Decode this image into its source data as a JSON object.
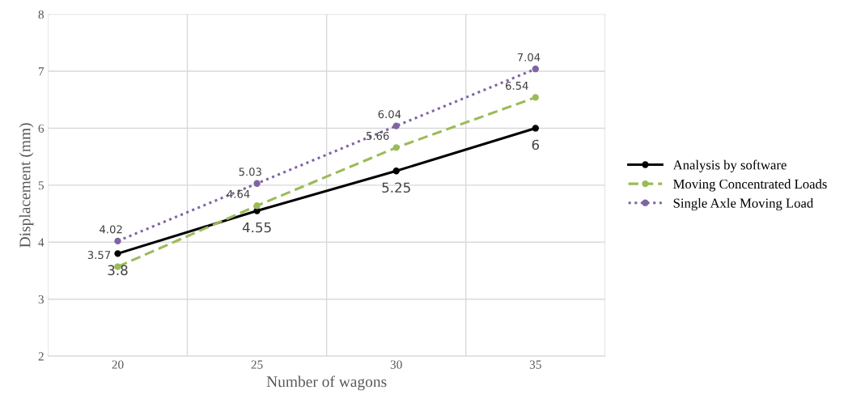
{
  "chart_data": {
    "type": "line",
    "xlabel": "Number of wagons",
    "ylabel": "Displacement (mm)",
    "categories": [
      "20",
      "25",
      "30",
      "35"
    ],
    "series": [
      {
        "name": "Analysis by software",
        "color": "#000000",
        "values": [
          3.8,
          4.55,
          5.25,
          6
        ],
        "line_style": "solid"
      },
      {
        "name": "Moving Concentrated Loads",
        "color": "#9bbb59",
        "values": [
          3.57,
          4.64,
          5.66,
          6.54
        ],
        "line_style": "dashed"
      },
      {
        "name": "Single Axle Moving Load",
        "color": "#8064a2",
        "values": [
          4.02,
          5.03,
          6.04,
          7.04
        ],
        "line_style": "dotted"
      }
    ],
    "ylim": [
      2,
      8
    ],
    "yticks": [
      2,
      3,
      4,
      5,
      6,
      7,
      8
    ],
    "grid": true,
    "legend": "right",
    "marker": "circle",
    "data_labels": true
  }
}
